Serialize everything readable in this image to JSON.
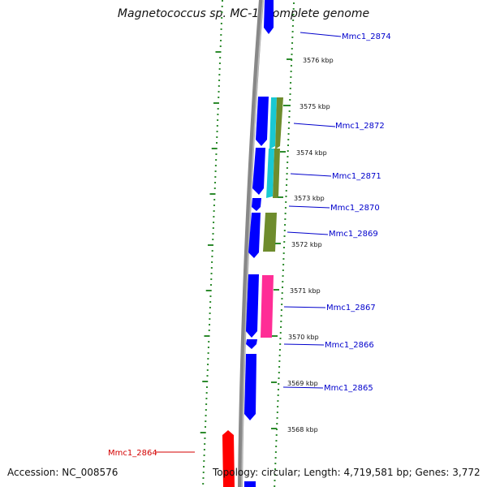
{
  "title": "Magnetococcus sp. MC-1, complete genome",
  "footer": {
    "accession": "Accession: NC_008576",
    "topology": "Topology: circular; Length: 4,719,581 bp; Genes: 3,772"
  },
  "colors": {
    "forward_cds": "#0000ff",
    "reverse_cds": "#ff0000",
    "orf_dots": "#2e8b2e",
    "backbone": "#888888",
    "cyan": "#19c8d2",
    "olive": "#6e8c2d",
    "magenta": "#ff2d96",
    "label_forward": "#0000cc",
    "label_reverse": "#d40000"
  },
  "kbp_ticks": [
    "3576 kbp",
    "3575 kbp",
    "3574 kbp",
    "3573 kbp",
    "3572 kbp",
    "3571 kbp",
    "3570 kbp",
    "3569 kbp",
    "3568 kbp"
  ],
  "gene_labels": [
    {
      "name": "Mmc1_2874",
      "strand": "forward"
    },
    {
      "name": "Mmc1_2872",
      "strand": "forward"
    },
    {
      "name": "Mmc1_2871",
      "strand": "forward"
    },
    {
      "name": "Mmc1_2870",
      "strand": "forward"
    },
    {
      "name": "Mmc1_2869",
      "strand": "forward"
    },
    {
      "name": "Mmc1_2867",
      "strand": "forward"
    },
    {
      "name": "Mmc1_2866",
      "strand": "forward"
    },
    {
      "name": "Mmc1_2865",
      "strand": "forward"
    },
    {
      "name": "Mmc1_2864",
      "strand": "reverse"
    }
  ]
}
